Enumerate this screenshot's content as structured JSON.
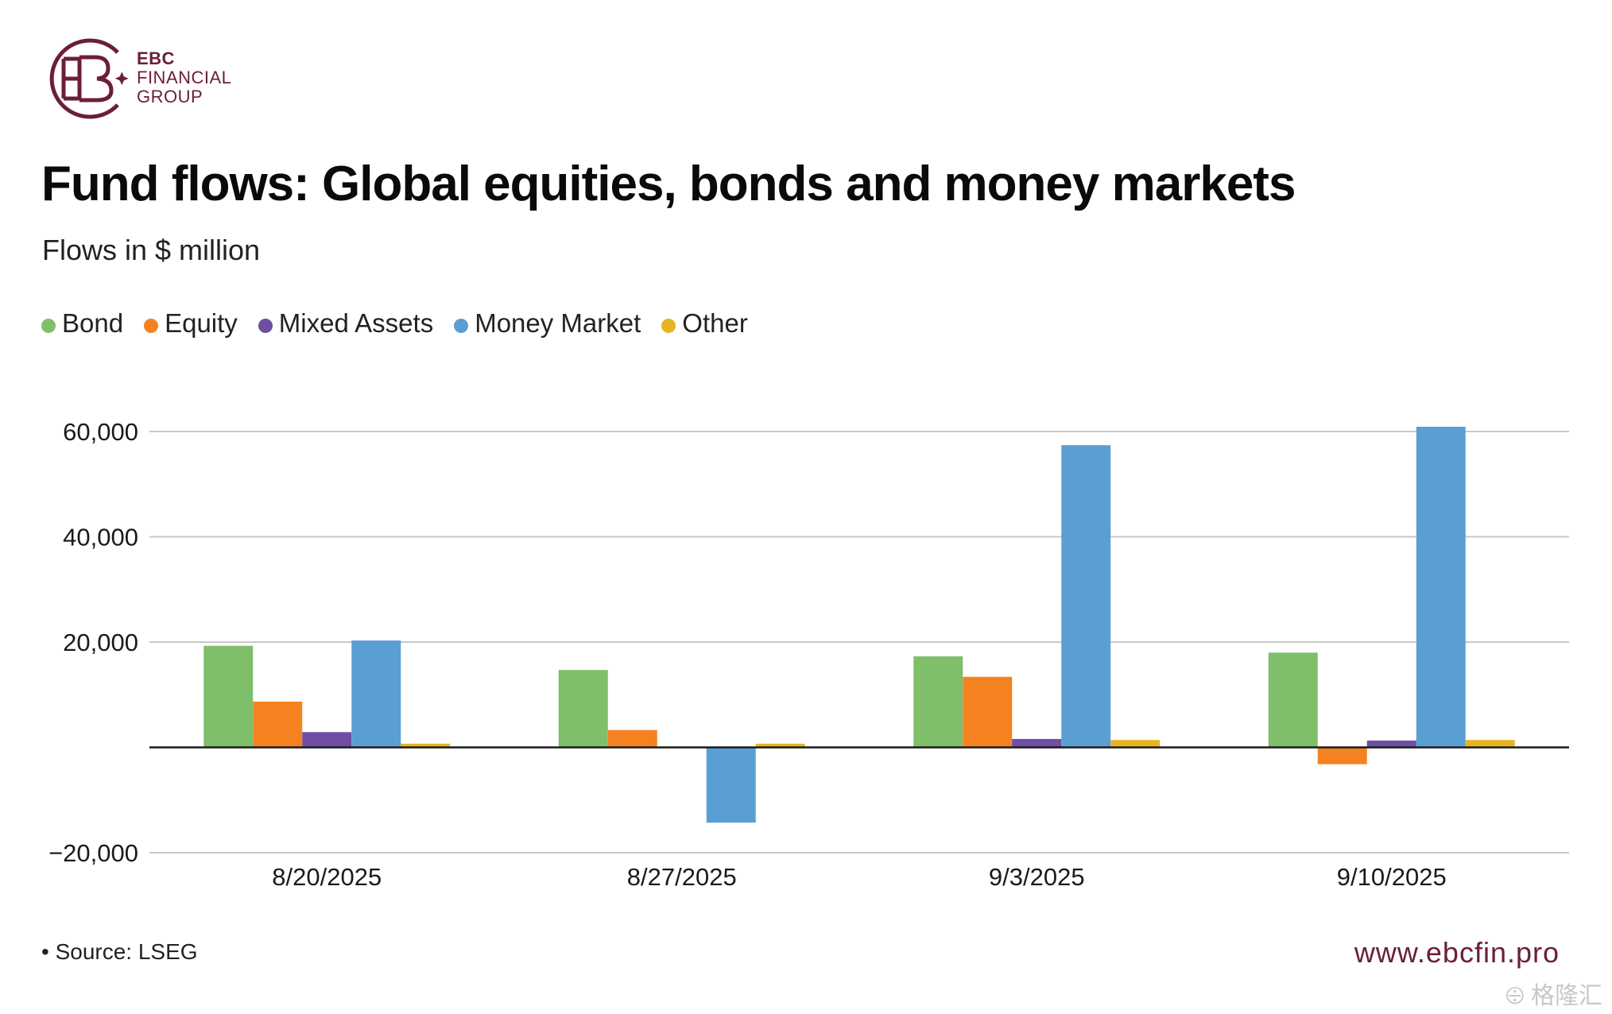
{
  "brand": {
    "line1": "EBC",
    "line2": "FINANCIAL",
    "line3": "GROUP",
    "color": "#6b1f35"
  },
  "chart_data": {
    "type": "bar",
    "title": "Fund flows: Global equities, bonds and money markets",
    "subtitle": "Flows in $ million",
    "categories": [
      "8/20/2025",
      "8/27/2025",
      "9/3/2025",
      "9/10/2025"
    ],
    "series": [
      {
        "name": "Bond",
        "color": "#7fbf6a",
        "values": [
          19300,
          14700,
          17300,
          18000
        ]
      },
      {
        "name": "Equity",
        "color": "#f58220",
        "values": [
          8700,
          3300,
          13400,
          -3200
        ]
      },
      {
        "name": "Mixed Assets",
        "color": "#6e4fa3",
        "values": [
          2900,
          0,
          1600,
          1300
        ]
      },
      {
        "name": "Money Market",
        "color": "#5a9fd4",
        "values": [
          20300,
          -14300,
          57400,
          60900
        ]
      },
      {
        "name": "Other",
        "color": "#e8b320",
        "values": [
          700,
          700,
          1400,
          1400
        ]
      }
    ],
    "yticks": [
      60000,
      40000,
      20000,
      -20000
    ],
    "ytick_labels": [
      "60,000",
      "40,000",
      "20,000",
      "−20,000"
    ],
    "ylim": [
      -20000,
      60000
    ],
    "grid": true,
    "legend_position": "top-left"
  },
  "footer": {
    "source": "• Source: LSEG",
    "website": "www.ebcfin.pro",
    "watermark": "⨸ 格隆汇"
  }
}
